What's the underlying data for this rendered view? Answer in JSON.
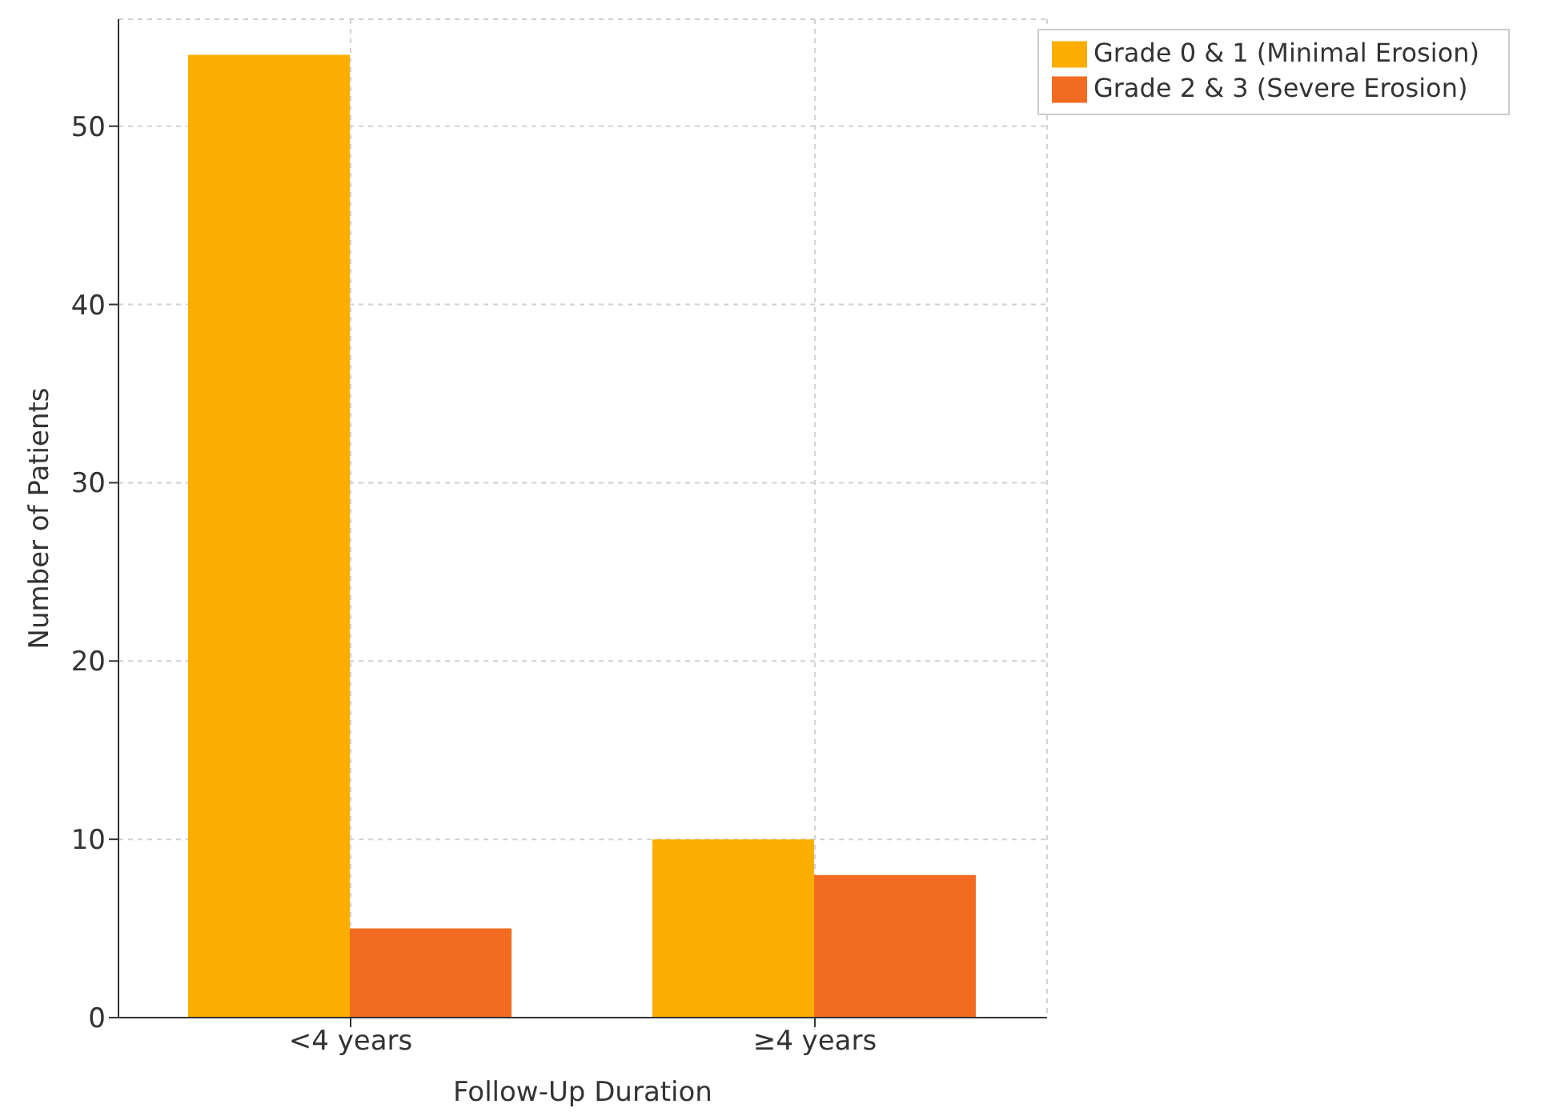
{
  "chart_data": {
    "type": "bar",
    "xlabel": "Follow-Up Duration",
    "ylabel": "Number of Patients",
    "categories": [
      "<4 years",
      "≥4 years"
    ],
    "series": [
      {
        "name": "Grade 0 & 1 (Minimal Erosion)",
        "color": "#fbae00",
        "values": [
          54,
          10
        ]
      },
      {
        "name": "Grade 2 & 3 (Severe Erosion)",
        "color": "#f26b21",
        "values": [
          5,
          8
        ]
      }
    ],
    "ylim": [
      0,
      56
    ],
    "yticks": [
      0,
      10,
      20,
      30,
      40,
      50
    ],
    "grid": true,
    "legend": "top right"
  }
}
